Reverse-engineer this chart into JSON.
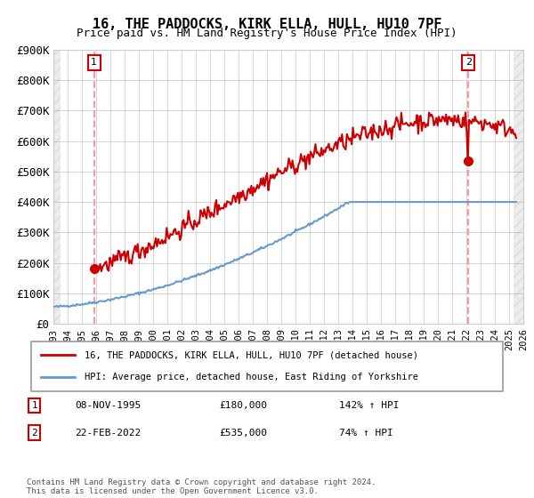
{
  "title1": "16, THE PADDOCKS, KIRK ELLA, HULL, HU10 7PF",
  "title2": "Price paid vs. HM Land Registry's House Price Index (HPI)",
  "ylabel": "",
  "xlabel": "",
  "ylim": [
    0,
    900000
  ],
  "yticks": [
    0,
    100000,
    200000,
    300000,
    400000,
    500000,
    600000,
    700000,
    800000,
    900000
  ],
  "ytick_labels": [
    "£0",
    "£100K",
    "£200K",
    "£300K",
    "£400K",
    "£500K",
    "£600K",
    "£700K",
    "£800K",
    "£900K"
  ],
  "xlim_start": 1993.0,
  "xlim_end": 2026.0,
  "hpi_line_color": "#6699CC",
  "price_line_color": "#CC0000",
  "marker_color": "#CC0000",
  "dashed_line_color": "#FF9999",
  "point1_x": 1995.86,
  "point1_y": 180000,
  "point1_label": "1",
  "point2_x": 2022.14,
  "point2_y": 535000,
  "point2_label": "2",
  "legend_entry1": "16, THE PADDOCKS, KIRK ELLA, HULL, HU10 7PF (detached house)",
  "legend_entry2": "HPI: Average price, detached house, East Riding of Yorkshire",
  "table_row1": [
    "1",
    "08-NOV-1995",
    "£180,000",
    "142% ↑ HPI"
  ],
  "table_row2": [
    "2",
    "22-FEB-2022",
    "£535,000",
    "74% ↑ HPI"
  ],
  "footer": "Contains HM Land Registry data © Crown copyright and database right 2024.\nThis data is licensed under the Open Government Licence v3.0.",
  "hatch_color": "#CCCCCC",
  "bg_color": "#FFFFFF",
  "grid_color": "#CCCCCC"
}
